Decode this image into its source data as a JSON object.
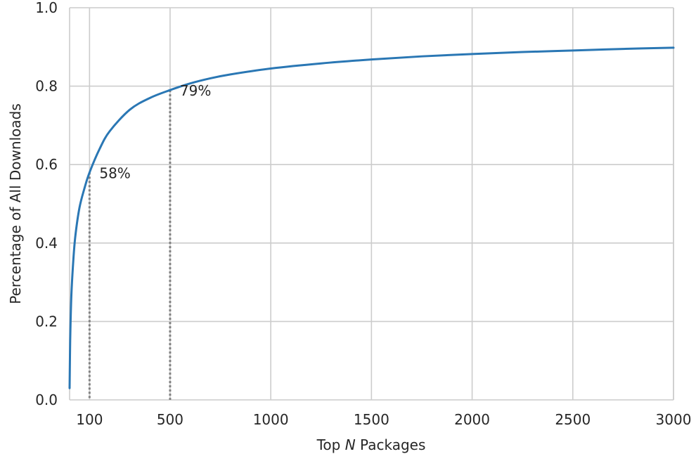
{
  "chart_data": {
    "type": "line",
    "title": "",
    "xlabel": {
      "prefix": "Top ",
      "italic": "N",
      "suffix": " Packages"
    },
    "ylabel": "Percentage of All Downloads",
    "xlim": [
      1,
      3000
    ],
    "ylim": [
      0,
      1.0
    ],
    "xticks": [
      100,
      500,
      1000,
      1500,
      2000,
      2500,
      3000
    ],
    "xtick_labels": [
      "100",
      "500",
      "1000",
      "1500",
      "2000",
      "2500",
      "3000"
    ],
    "yticks": [
      0.0,
      0.2,
      0.4,
      0.6,
      0.8,
      1.0
    ],
    "ytick_labels": [
      "0.0",
      "0.2",
      "0.4",
      "0.6",
      "0.8",
      "1.0"
    ],
    "grid": true,
    "colors": {
      "line": "#2a77b4",
      "marker_line": "#808080",
      "grid": "#cccccc",
      "text": "#262626"
    },
    "series": [
      {
        "x": [
          1,
          3,
          5,
          10,
          20,
          30,
          50,
          75,
          100,
          150,
          200,
          300,
          400,
          500,
          600,
          700,
          800,
          1000,
          1250,
          1500,
          1750,
          2000,
          2250,
          2500,
          2750,
          3000
        ],
        "y": [
          0.03,
          0.12,
          0.18,
          0.27,
          0.36,
          0.42,
          0.49,
          0.54,
          0.58,
          0.64,
          0.685,
          0.74,
          0.77,
          0.79,
          0.807,
          0.82,
          0.83,
          0.845,
          0.858,
          0.868,
          0.876,
          0.882,
          0.887,
          0.891,
          0.895,
          0.898
        ]
      }
    ],
    "annotations": [
      {
        "x": 100,
        "y": 0.58,
        "label": "58%"
      },
      {
        "x": 500,
        "y": 0.79,
        "label": "79%"
      }
    ]
  }
}
